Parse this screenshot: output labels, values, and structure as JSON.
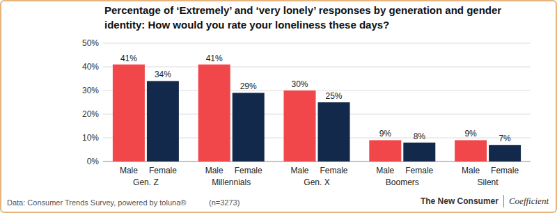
{
  "chart_data": {
    "type": "bar",
    "title": "Percentage of ‘Extremely’ and ‘very lonely’ responses by generation and gender identity: How would you rate your loneliness these days?",
    "categories": [
      "Gen. Z",
      "Millennials",
      "Gen. X",
      "Boomers",
      "Silent"
    ],
    "series": [
      {
        "name": "Male",
        "color": "#f2474a",
        "values": [
          41,
          41,
          30,
          9,
          9
        ],
        "value_labels": [
          "41%",
          "41%",
          "30%",
          "9%",
          "9%"
        ]
      },
      {
        "name": "Female",
        "color": "#13294b",
        "values": [
          34,
          29,
          25,
          8,
          7
        ],
        "value_labels": [
          "34%",
          "29%",
          "25%",
          "8%",
          "7%"
        ]
      }
    ],
    "ylim": [
      0,
      50
    ],
    "yticks": [
      {
        "value": 0,
        "label": "0%"
      },
      {
        "value": 10,
        "label": "10%"
      },
      {
        "value": 20,
        "label": "20%"
      },
      {
        "value": 30,
        "label": "30%"
      },
      {
        "value": 40,
        "label": "40%"
      },
      {
        "value": 50,
        "label": "50%"
      }
    ],
    "grid": true,
    "data_labels": true,
    "source": "Data: Consumer Trends Survey, powered by toluna®",
    "annotations": [
      "(n=3273)",
      "The New Consumer",
      "Coefficient"
    ]
  }
}
